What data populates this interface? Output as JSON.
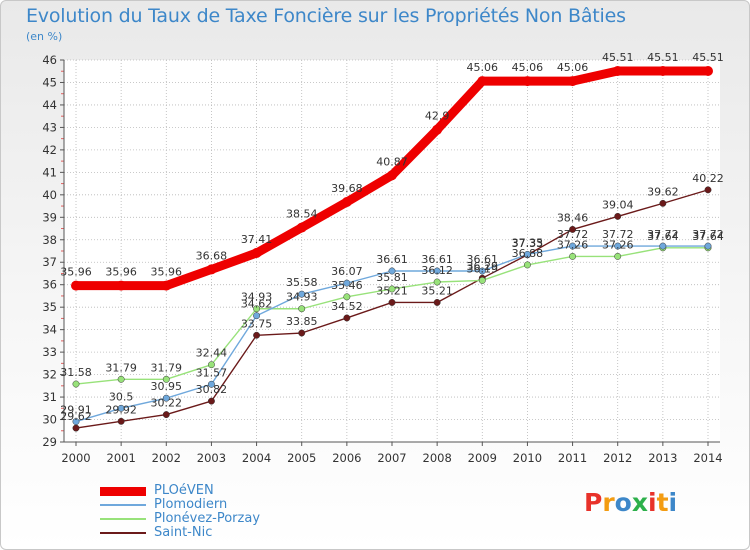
{
  "title": "Evolution du Taux de Taxe Foncière sur les Propriétés Non Bâties",
  "unit": "(en %)",
  "logo": {
    "text": "Proxiti",
    "colors": [
      "#e8322a",
      "#f39c12",
      "#3d87c9",
      "#2db04b",
      "#e8322a",
      "#f39c12",
      "#3d87c9"
    ]
  },
  "chart_data": {
    "type": "line",
    "x": [
      "2000",
      "2001",
      "2002",
      "2003",
      "2004",
      "2005",
      "2006",
      "2007",
      "2008",
      "2009",
      "2010",
      "2011",
      "2012",
      "2013",
      "2014"
    ],
    "ylim": [
      29,
      46
    ],
    "yticks": [
      "29",
      "30",
      "31",
      "32",
      "33",
      "34",
      "35",
      "36",
      "37",
      "38",
      "39",
      "40",
      "41",
      "42",
      "43",
      "44",
      "45",
      "46"
    ],
    "grid": true,
    "legend": "bottom-left",
    "series": [
      {
        "name": "PLOéVEN",
        "color": "#ee0000",
        "values": [
          35.96,
          35.96,
          35.96,
          36.68,
          37.41,
          38.54,
          39.68,
          40.87,
          42.9,
          45.06,
          45.06,
          45.06,
          45.51,
          45.51,
          45.51
        ],
        "labels": [
          "35.96",
          "35.96",
          "35.96",
          "36.68",
          "37.41",
          "38.54",
          "39.68",
          "40.87",
          "42.9",
          "45.06",
          "45.06",
          "45.06",
          "45.51",
          "45.51",
          "45.51"
        ]
      },
      {
        "name": "Plomodiern",
        "color": "#6fa8dc",
        "values": [
          29.91,
          30.5,
          30.95,
          31.57,
          34.62,
          35.58,
          36.07,
          36.61,
          36.61,
          36.61,
          37.35,
          37.72,
          37.72,
          37.72,
          37.72
        ],
        "labels": [
          "29.91",
          "30.5",
          "30.95",
          "31.57",
          "34.62",
          "35.58",
          "36.07",
          "36.61",
          "36.61",
          "36.61",
          "37.35",
          "37.72",
          "37.72",
          "37.72",
          "37.72"
        ]
      },
      {
        "name": "Plonévez-Porzay",
        "color": "#98e27a",
        "values": [
          31.58,
          31.79,
          31.79,
          32.44,
          34.93,
          34.93,
          35.46,
          35.81,
          36.12,
          36.19,
          36.88,
          37.26,
          37.26,
          37.64,
          37.64
        ],
        "labels": [
          "31.58",
          "31.79",
          "31.79",
          "32.44",
          "34.93",
          "34.93",
          "35.46",
          "35.81",
          "36.12",
          "36.19",
          "36.88",
          "37.26",
          "37.26",
          "37.64",
          "37.64"
        ]
      },
      {
        "name": "Saint-Nic",
        "color": "#6b1a1a",
        "values": [
          29.62,
          29.92,
          30.22,
          30.82,
          33.75,
          33.85,
          34.52,
          35.21,
          35.21,
          36.29,
          37.33,
          38.46,
          39.04,
          39.62,
          40.22
        ],
        "labels": [
          "29.62",
          "29.92",
          "30.22",
          "30.82",
          "33.75",
          "33.85",
          "34.52",
          "35.21",
          "35.21",
          "36.29",
          "37.33",
          "38.46",
          "39.04",
          "39.62",
          "40.22"
        ]
      }
    ]
  }
}
